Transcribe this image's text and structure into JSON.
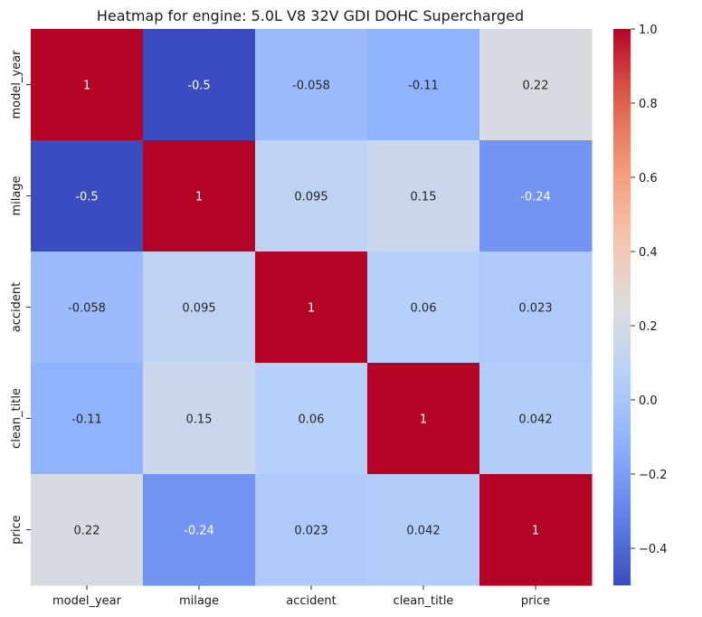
{
  "chart_data": {
    "type": "heatmap",
    "title": "Heatmap for engine: 5.0L V8 32V GDI DOHC Supercharged",
    "x_labels": [
      "model_year",
      "milage",
      "accident",
      "clean_title",
      "price"
    ],
    "y_labels": [
      "model_year",
      "milage",
      "accident",
      "clean_title",
      "price"
    ],
    "values": [
      [
        1,
        -0.5,
        -0.058,
        -0.11,
        0.22
      ],
      [
        -0.5,
        1,
        0.095,
        0.15,
        -0.24
      ],
      [
        -0.058,
        0.095,
        1,
        0.06,
        0.023
      ],
      [
        -0.11,
        0.15,
        0.06,
        1,
        0.042
      ],
      [
        0.22,
        -0.24,
        0.023,
        0.042,
        1
      ]
    ],
    "value_labels": [
      [
        "1",
        "-0.5",
        "-0.058",
        "-0.11",
        "0.22"
      ],
      [
        "-0.5",
        "1",
        "0.095",
        "0.15",
        "-0.24"
      ],
      [
        "-0.058",
        "0.095",
        "1",
        "0.06",
        "0.023"
      ],
      [
        "-0.11",
        "0.15",
        "0.06",
        "1",
        "0.042"
      ],
      [
        "0.22",
        "-0.24",
        "0.023",
        "0.042",
        "1"
      ]
    ],
    "colormap": "coolwarm",
    "vmin": -0.5,
    "vmax": 1.0,
    "colorbar": {
      "ticks": [
        -0.4,
        -0.2,
        0.0,
        0.2,
        0.4,
        0.6,
        0.8,
        1.0
      ],
      "tick_labels": [
        "−0.4",
        "−0.2",
        "0.0",
        "0.2",
        "0.4",
        "0.6",
        "0.8",
        "1.0"
      ],
      "placement": "right"
    },
    "grid": false
  }
}
